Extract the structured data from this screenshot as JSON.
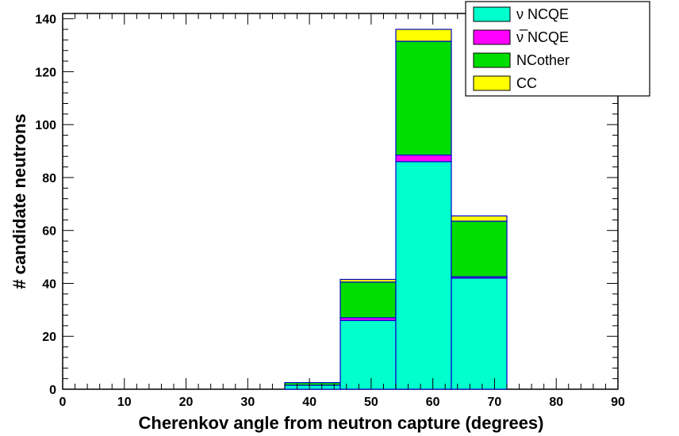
{
  "chart_data": {
    "type": "bar",
    "stacked": true,
    "histogram": true,
    "xlabel": "Cherenkov angle from neutron capture (degrees)",
    "ylabel": "# candidate neutrons",
    "xlim": [
      0,
      90
    ],
    "ylim": [
      0,
      142
    ],
    "x_ticks": [
      0,
      10,
      20,
      30,
      40,
      50,
      60,
      70,
      80,
      90
    ],
    "y_ticks": [
      0,
      20,
      40,
      60,
      80,
      100,
      120,
      140
    ],
    "x_ticks_labels": [
      "0",
      "10",
      "20",
      "30",
      "40",
      "50",
      "60",
      "70",
      "80",
      "90"
    ],
    "y_ticks_labels": [
      "0",
      "20",
      "40",
      "60",
      "80",
      "100",
      "120",
      "140"
    ],
    "grid": false,
    "legend_position": "top-right",
    "bins": [
      {
        "low": 36,
        "high": 45
      },
      {
        "low": 45,
        "high": 54
      },
      {
        "low": 54,
        "high": 63
      },
      {
        "low": 63,
        "high": 72
      }
    ],
    "series": [
      {
        "name": "ν NCQE",
        "color": "#00ffcc",
        "values": [
          1.5,
          26,
          86,
          42
        ]
      },
      {
        "name": "ν̅ NCQE",
        "color": "#ff00ff",
        "values": [
          0,
          1,
          2.5,
          0.5
        ]
      },
      {
        "name": "NCother",
        "color": "#00dd00",
        "values": [
          1,
          13.5,
          43,
          21
        ]
      },
      {
        "name": "CC",
        "color": "#ffff00",
        "values": [
          0,
          1,
          4.5,
          2
        ]
      }
    ]
  }
}
